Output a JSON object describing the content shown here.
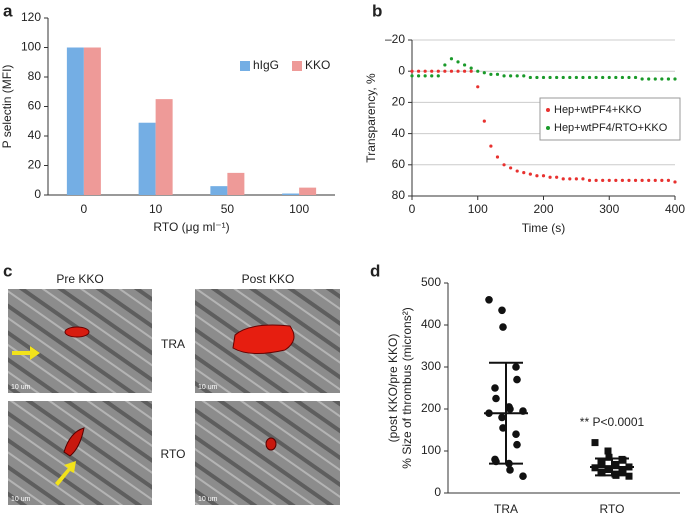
{
  "chart_data": [
    {
      "type": "bar",
      "panel": "a",
      "y_label": "P selectin (MFI)",
      "x_label": "RTO (μg ml⁻¹)",
      "categories": [
        "0",
        "10",
        "50",
        "100"
      ],
      "series": [
        {
          "name": "hIgG",
          "color": "#74aee4",
          "values": [
            100,
            49,
            6,
            1
          ]
        },
        {
          "name": "KKO",
          "color": "#ee9a98",
          "values": [
            100,
            65,
            15,
            5
          ]
        }
      ],
      "ylim": [
        0,
        120
      ],
      "yticks": [
        0,
        20,
        40,
        60,
        80,
        100,
        120
      ],
      "grid": false,
      "legend": "upper right"
    },
    {
      "type": "scatter",
      "panel": "b",
      "y_label": "Transparency, %",
      "x_label": "Time (s)",
      "x": [
        0,
        10,
        20,
        30,
        40,
        50,
        60,
        70,
        80,
        90,
        100,
        110,
        120,
        130,
        140,
        150,
        160,
        170,
        180,
        190,
        200,
        210,
        220,
        230,
        240,
        250,
        260,
        270,
        280,
        290,
        300,
        310,
        320,
        330,
        340,
        350,
        360,
        370,
        380,
        390,
        400
      ],
      "series": [
        {
          "name": "Hep+wtPF4+KKO",
          "color": "#e8312f",
          "values": [
            0,
            0,
            0,
            0,
            0,
            0,
            0,
            0,
            0,
            0,
            10,
            32,
            48,
            55,
            60,
            62,
            64,
            65,
            66,
            67,
            67,
            68,
            68,
            69,
            69,
            69,
            69,
            70,
            70,
            70,
            70,
            70,
            70,
            70,
            70,
            70,
            70,
            70,
            70,
            70,
            71
          ]
        },
        {
          "name": "Hep+wtPF4/RTO+KKO",
          "color": "#1a9a2a",
          "values": [
            3,
            3,
            3,
            3,
            3,
            -4,
            -8,
            -6,
            -4,
            -2,
            0,
            1,
            2,
            2,
            3,
            3,
            3,
            3,
            4,
            4,
            4,
            4,
            4,
            4,
            4,
            4,
            4,
            4,
            4,
            4,
            4,
            4,
            4,
            4,
            4,
            5,
            5,
            5,
            5,
            5,
            5
          ]
        }
      ],
      "xlim": [
        0,
        400
      ],
      "xticks": [
        0,
        100,
        200,
        300,
        400
      ],
      "ylim": [
        80,
        -20
      ],
      "yticks": [
        {
          "value": -20,
          "label": "–20"
        },
        0,
        20,
        40,
        60,
        80
      ],
      "grid": true,
      "legend": "right"
    },
    {
      "type": "strip",
      "panel": "d",
      "y_label": [
        "% Size of thrombus (microns²)",
        "(post KKO/pre KKO)"
      ],
      "categories": [
        "TRA",
        "RTO"
      ],
      "points": [
        [
          460,
          435,
          395,
          300,
          270,
          250,
          225,
          205,
          200,
          195,
          190,
          180,
          155,
          140,
          115,
          80,
          75,
          70,
          55,
          40
        ],
        [
          120,
          100,
          85,
          80,
          78,
          75,
          72,
          68,
          65,
          62,
          60,
          58,
          56,
          55,
          52,
          50,
          48,
          45,
          42,
          40
        ]
      ],
      "mean": [
        190,
        62
      ],
      "sd": [
        120,
        20
      ],
      "annotation": "** P<0.0001",
      "ylim": [
        0,
        500
      ],
      "yticks": [
        0,
        100,
        200,
        300,
        400,
        500
      ],
      "grid": false
    }
  ],
  "micrographs": {
    "panel": "c",
    "columns": [
      "Pre KKO",
      "Post KKO"
    ],
    "rows": [
      "TRA",
      "RTO"
    ],
    "scale_bar": "10 um"
  }
}
